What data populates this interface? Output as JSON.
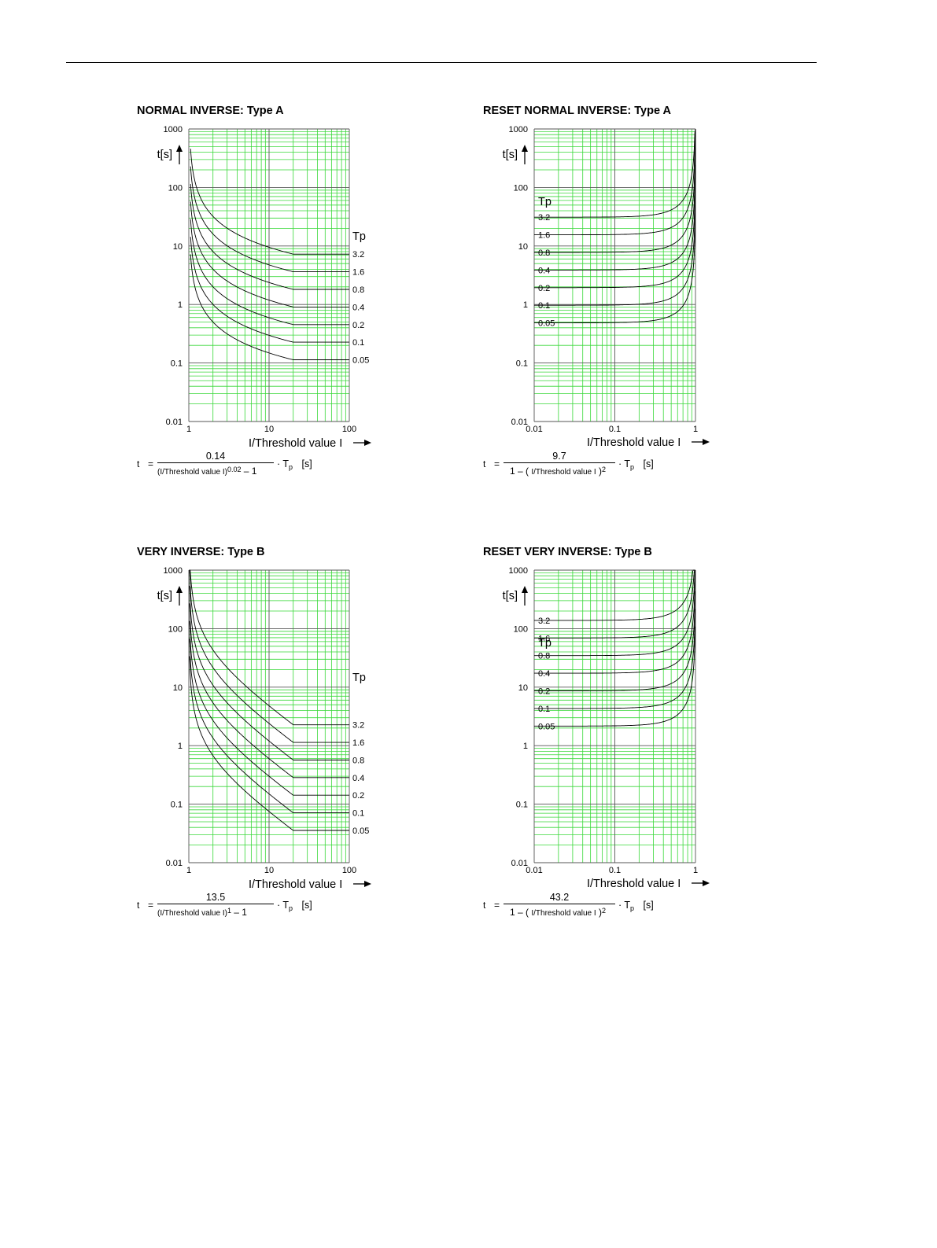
{
  "chart_data": [
    {
      "type": "line",
      "title": "NORMAL INVERSE: Type A",
      "xlabel": "I/Threshold value I",
      "ylabel": "t[s]",
      "x_scale": "log",
      "y_scale": "log",
      "xlim": [
        1,
        100
      ],
      "ylim": [
        0.01,
        1000
      ],
      "x_ticks": [
        "1",
        "10",
        "100"
      ],
      "y_ticks": [
        "0.01",
        "0.1",
        "1",
        "10",
        "100",
        "1000"
      ],
      "legend_title": "Tp",
      "grid": true,
      "formula": {
        "num": "0.14",
        "den_base": "(I/Threshold value I)",
        "den_exp": "0.02",
        "den_tail": "– 1",
        "factor": "T",
        "factor_sub": "p",
        "unit": "[s]"
      },
      "curve": {
        "kind": "inverse",
        "k": 0.14,
        "alpha": 0.02,
        "x_start": 1.05,
        "x_flat": 20
      },
      "series": [
        {
          "name": "3.2",
          "tp": 3.2
        },
        {
          "name": "1.6",
          "tp": 1.6
        },
        {
          "name": "0.8",
          "tp": 0.8
        },
        {
          "name": "0.4",
          "tp": 0.4
        },
        {
          "name": "0.2",
          "tp": 0.2
        },
        {
          "name": "0.1",
          "tp": 0.1
        },
        {
          "name": "0.05",
          "tp": 0.05
        }
      ]
    },
    {
      "type": "line",
      "title": "RESET NORMAL INVERSE: Type A",
      "xlabel": "I/Threshold value I",
      "ylabel": "t[s]",
      "x_scale": "log",
      "y_scale": "log",
      "xlim": [
        0.01,
        1
      ],
      "ylim": [
        0.01,
        1000
      ],
      "x_ticks": [
        "0.01",
        "0.1",
        "1"
      ],
      "y_ticks": [
        "0.01",
        "0.1",
        "1",
        "10",
        "100",
        "1000"
      ],
      "legend_title": "Tp",
      "grid": true,
      "formula": {
        "num": "9.7",
        "den_base": "1 – ( I/Threshold value I )",
        "den_exp": "2",
        "den_tail": "",
        "factor": "T",
        "factor_sub": "p",
        "unit": "[s]"
      },
      "curve": {
        "kind": "reset",
        "k": 9.7,
        "alpha": 2,
        "x_start": 0.01,
        "x_end": 0.999
      },
      "series": [
        {
          "name": "3.2",
          "tp": 3.2
        },
        {
          "name": "1.6",
          "tp": 1.6
        },
        {
          "name": "0.8",
          "tp": 0.8
        },
        {
          "name": "0.4",
          "tp": 0.4
        },
        {
          "name": "0.2",
          "tp": 0.2
        },
        {
          "name": "0.1",
          "tp": 0.1
        },
        {
          "name": "0.05",
          "tp": 0.05
        }
      ]
    },
    {
      "type": "line",
      "title": "VERY INVERSE: Type B",
      "xlabel": "I/Threshold value I",
      "ylabel": "t[s]",
      "x_scale": "log",
      "y_scale": "log",
      "xlim": [
        1,
        100
      ],
      "ylim": [
        0.01,
        1000
      ],
      "x_ticks": [
        "1",
        "10",
        "100"
      ],
      "y_ticks": [
        "0.01",
        "0.1",
        "1",
        "10",
        "100",
        "1000"
      ],
      "legend_title": "Tp",
      "grid": true,
      "formula": {
        "num": "13.5",
        "den_base": "(I/Threshold value I)",
        "den_exp": "1",
        "den_tail": "– 1",
        "factor": "T",
        "factor_sub": "p",
        "unit": "[s]"
      },
      "curve": {
        "kind": "inverse",
        "k": 13.5,
        "alpha": 1,
        "x_start": 1.02,
        "x_flat": 20
      },
      "series": [
        {
          "name": "3.2",
          "tp": 3.2
        },
        {
          "name": "1.6",
          "tp": 1.6
        },
        {
          "name": "0.8",
          "tp": 0.8
        },
        {
          "name": "0.4",
          "tp": 0.4
        },
        {
          "name": "0.2",
          "tp": 0.2
        },
        {
          "name": "0.1",
          "tp": 0.1
        },
        {
          "name": "0.05",
          "tp": 0.05
        }
      ]
    },
    {
      "type": "line",
      "title": "RESET VERY INVERSE: Type B",
      "xlabel": "I/Threshold value I",
      "ylabel": "t[s]",
      "x_scale": "log",
      "y_scale": "log",
      "xlim": [
        0.01,
        1
      ],
      "ylim": [
        0.01,
        1000
      ],
      "x_ticks": [
        "0.01",
        "0.1",
        "1"
      ],
      "y_ticks": [
        "0.01",
        "0.1",
        "1",
        "10",
        "100",
        "1000"
      ],
      "legend_title": "Tp",
      "grid": true,
      "formula": {
        "num": "43.2",
        "den_base": "1 – ( I/Threshold value I )",
        "den_exp": "2",
        "den_tail": "",
        "factor": "T",
        "factor_sub": "p",
        "unit": "[s]"
      },
      "curve": {
        "kind": "reset",
        "k": 43.2,
        "alpha": 2,
        "x_start": 0.01,
        "x_end": 0.99
      },
      "series": [
        {
          "name": "3.2",
          "tp": 3.2
        },
        {
          "name": "1.6",
          "tp": 1.6
        },
        {
          "name": "0.8",
          "tp": 0.8
        },
        {
          "name": "0.4",
          "tp": 0.4
        },
        {
          "name": "0.2",
          "tp": 0.2
        },
        {
          "name": "0.1",
          "tp": 0.1
        },
        {
          "name": "0.05",
          "tp": 0.05
        }
      ]
    }
  ],
  "colors": {
    "grid_minor": "#38d838",
    "grid_major": "#555555",
    "curve": "#000000"
  },
  "formula_lhs": {
    "t": "t",
    "eq": "="
  }
}
